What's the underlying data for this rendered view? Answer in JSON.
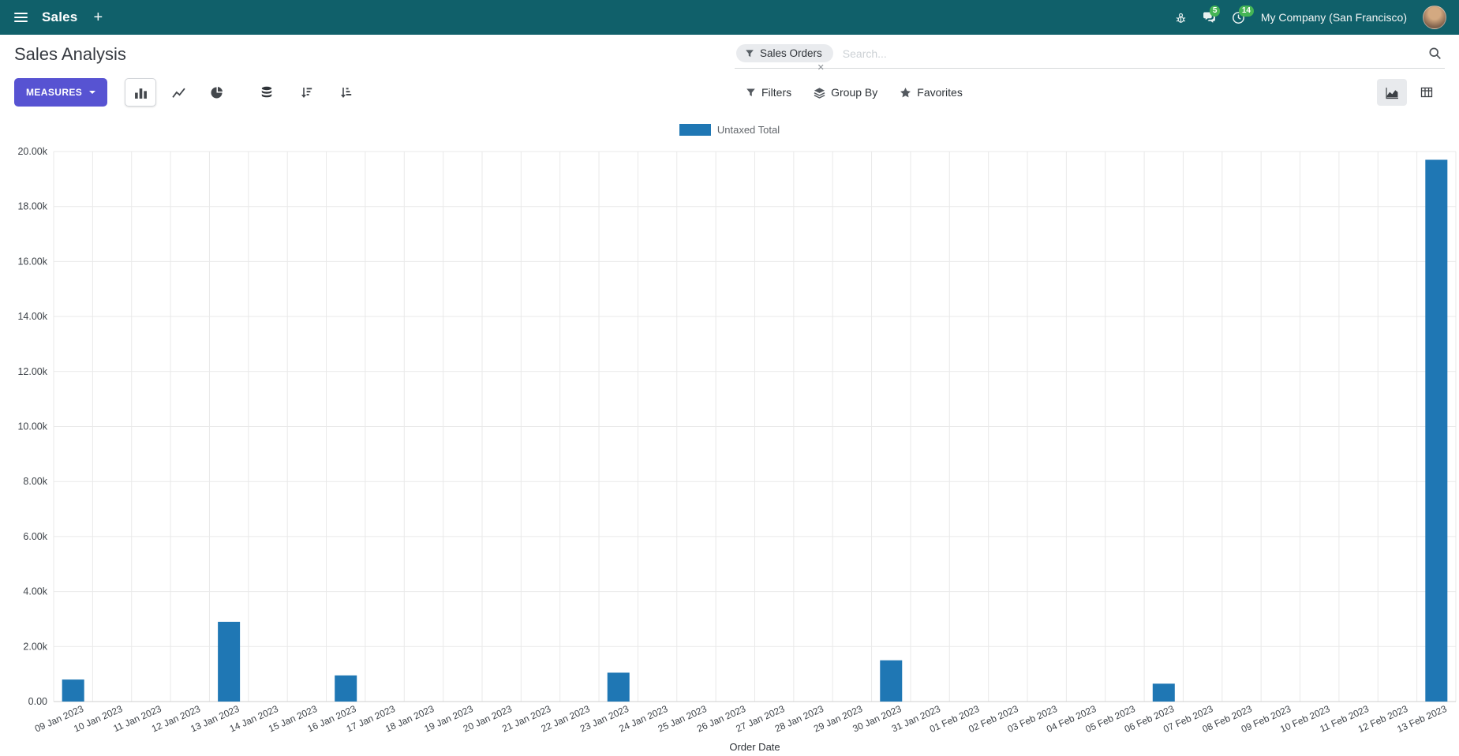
{
  "navbar": {
    "app_name": "Sales",
    "plus_label": "+",
    "messages_badge": "5",
    "activities_badge": "14",
    "company": "My Company (San Francisco)"
  },
  "control_panel": {
    "title": "Sales Analysis",
    "search": {
      "facet_label": "Sales Orders",
      "facet_close": "✕",
      "placeholder": "Search..."
    },
    "toolbar": {
      "measures_label": "MEASURES",
      "filters_label": "Filters",
      "groupby_label": "Group By",
      "favorites_label": "Favorites"
    }
  },
  "colors": {
    "navbar_bg": "#10606a",
    "primary_button": "#5753d2",
    "badge_green": "#45b555",
    "bar_color": "#1f77b4"
  },
  "chart_data": {
    "type": "bar",
    "title": "",
    "xlabel": "Order Date",
    "ylabel": "",
    "legend": [
      "Untaxed Total"
    ],
    "legend_position": "top-center",
    "grid": true,
    "series_color": "#1f77b4",
    "ylim": [
      0,
      20000
    ],
    "ytick": 2000,
    "categories": [
      "09 Jan 2023",
      "10 Jan 2023",
      "11 Jan 2023",
      "12 Jan 2023",
      "13 Jan 2023",
      "14 Jan 2023",
      "15 Jan 2023",
      "16 Jan 2023",
      "17 Jan 2023",
      "18 Jan 2023",
      "19 Jan 2023",
      "20 Jan 2023",
      "21 Jan 2023",
      "22 Jan 2023",
      "23 Jan 2023",
      "24 Jan 2023",
      "25 Jan 2023",
      "26 Jan 2023",
      "27 Jan 2023",
      "28 Jan 2023",
      "29 Jan 2023",
      "30 Jan 2023",
      "31 Jan 2023",
      "01 Feb 2023",
      "02 Feb 2023",
      "03 Feb 2023",
      "04 Feb 2023",
      "05 Feb 2023",
      "06 Feb 2023",
      "07 Feb 2023",
      "08 Feb 2023",
      "09 Feb 2023",
      "10 Feb 2023",
      "11 Feb 2023",
      "12 Feb 2023",
      "13 Feb 2023"
    ],
    "values": [
      800,
      0,
      0,
      0,
      2900,
      0,
      0,
      950,
      0,
      0,
      0,
      0,
      0,
      0,
      1050,
      0,
      0,
      0,
      0,
      0,
      0,
      1500,
      0,
      0,
      0,
      0,
      0,
      0,
      650,
      0,
      0,
      0,
      0,
      0,
      0,
      19700
    ]
  }
}
